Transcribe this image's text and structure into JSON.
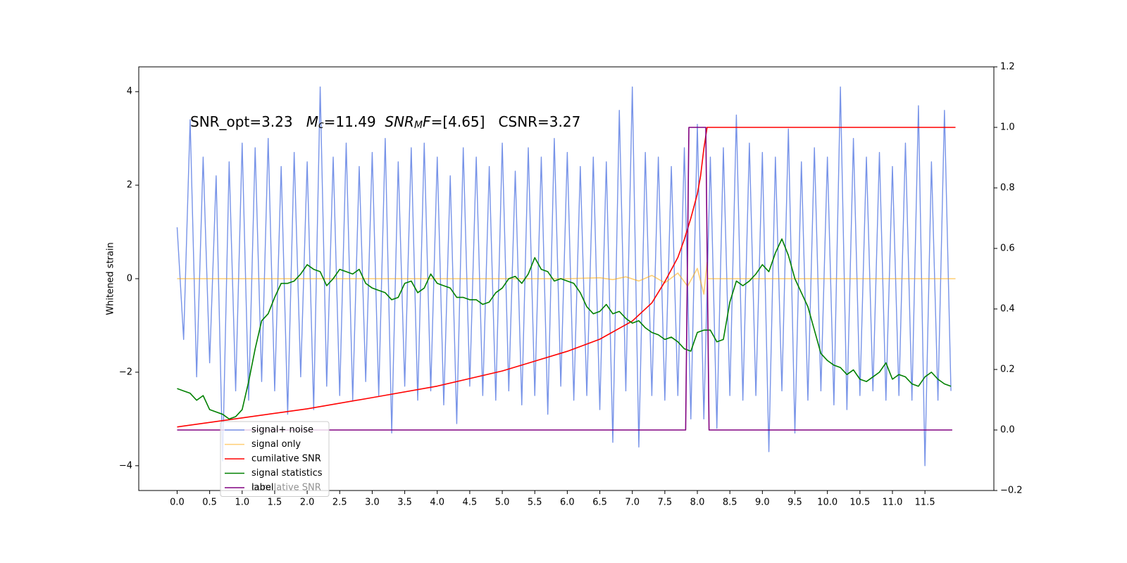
{
  "chart_data": {
    "type": "line",
    "annotation": [
      {
        "text": "SNR_opt=3.23   ",
        "style": "normal"
      },
      {
        "text": "M",
        "style": "italic"
      },
      {
        "text": "c",
        "style": "sub"
      },
      {
        "text": "=11.49  ",
        "style": "normal"
      },
      {
        "text": "SNR",
        "style": "italic"
      },
      {
        "text": "M",
        "style": "sub"
      },
      {
        "text": "F",
        "style": "italic"
      },
      {
        "text": "=[4.65]   CSNR=3.27",
        "style": "normal"
      }
    ],
    "ylabel": "Whitened strain",
    "xlim": [
      -0.59,
      12.56
    ],
    "ylim": [
      -4.53,
      4.53
    ],
    "y2lim": [
      -0.2,
      1.2
    ],
    "xticks": [
      {
        "value": 0,
        "label": "0.0"
      },
      0.5,
      {
        "value": 1,
        "label": "1.0"
      },
      1.5,
      {
        "value": 2,
        "label": "2.0"
      },
      2.5,
      {
        "value": 3,
        "label": "3.0"
      },
      3.5,
      {
        "value": 4,
        "label": "4.0"
      },
      4.5,
      {
        "value": 5,
        "label": "5.0"
      },
      5.5,
      {
        "value": 6,
        "label": "6.0"
      },
      6.5,
      {
        "value": 7,
        "label": "7.0"
      },
      7.5,
      {
        "value": 8,
        "label": "8.0"
      },
      8.5,
      {
        "value": 9,
        "label": "9.0"
      },
      9.5,
      {
        "value": 10,
        "label": "10.0"
      },
      10.5,
      {
        "value": 11,
        "label": "11.0"
      },
      11.5
    ],
    "yticks": [
      {
        "value": -4,
        "label": "−4"
      },
      {
        "value": -2,
        "label": "−2"
      },
      0,
      2,
      4
    ],
    "y2ticks": [
      {
        "value": -0.2,
        "label": "−0.2"
      },
      {
        "value": 0,
        "label": "0.0"
      },
      0.2,
      0.4,
      0.6,
      0.8,
      {
        "value": 1,
        "label": "1.0"
      },
      1.2
    ],
    "legend": {
      "loc": "lower left"
    },
    "background_legend_text": "cumilative SNR",
    "x": [
      0,
      0.1,
      0.2,
      0.3,
      0.4,
      0.5,
      0.6,
      0.7,
      0.8,
      0.9,
      1.0,
      1.1,
      1.2,
      1.3,
      1.4,
      1.5,
      1.6,
      1.7,
      1.8,
      1.9,
      2.0,
      2.1,
      2.2,
      2.3,
      2.4,
      2.5,
      2.6,
      2.7,
      2.8,
      2.9,
      3.0,
      3.1,
      3.2,
      3.3,
      3.4,
      3.5,
      3.6,
      3.7,
      3.8,
      3.9,
      4.0,
      4.1,
      4.2,
      4.3,
      4.4,
      4.5,
      4.6,
      4.7,
      4.8,
      4.9,
      5.0,
      5.1,
      5.2,
      5.3,
      5.4,
      5.5,
      5.6,
      5.7,
      5.8,
      5.9,
      6.0,
      6.1,
      6.2,
      6.3,
      6.4,
      6.5,
      6.6,
      6.7,
      6.8,
      6.9,
      7.0,
      7.1,
      7.2,
      7.3,
      7.4,
      7.5,
      7.6,
      7.7,
      7.8,
      7.9,
      8.0,
      8.1,
      8.2,
      8.3,
      8.4,
      8.5,
      8.6,
      8.7,
      8.8,
      8.9,
      9.0,
      9.1,
      9.2,
      9.3,
      9.4,
      9.5,
      9.6,
      9.7,
      9.8,
      9.9,
      10.0,
      10.1,
      10.2,
      10.3,
      10.4,
      10.5,
      10.6,
      10.7,
      10.8,
      10.9,
      11.0,
      11.1,
      11.2,
      11.3,
      11.4,
      11.5,
      11.6,
      11.7,
      11.8,
      11.9
    ],
    "series": [
      {
        "name": "signal+ noise",
        "color": "#7793e8",
        "axis": "y",
        "values": [
          1.1,
          -1.3,
          3.4,
          -2.1,
          2.6,
          -1.8,
          2.2,
          -3.9,
          2.5,
          -2.4,
          2.9,
          -2.6,
          2.8,
          -2.2,
          3.0,
          -2.4,
          2.4,
          -2.9,
          2.7,
          -2.1,
          2.5,
          -2.8,
          4.1,
          -2.3,
          2.6,
          -2.5,
          2.9,
          -2.6,
          2.4,
          -2.2,
          2.7,
          -2.5,
          3.0,
          -3.3,
          2.5,
          -2.3,
          2.8,
          -2.6,
          2.9,
          -2.4,
          2.6,
          -2.7,
          2.2,
          -3.1,
          2.8,
          -2.3,
          2.6,
          -2.5,
          2.4,
          -2.6,
          2.9,
          -2.4,
          2.3,
          -2.7,
          2.8,
          -2.5,
          2.6,
          -2.9,
          3.0,
          -2.3,
          2.7,
          -2.6,
          2.4,
          -2.5,
          2.6,
          -2.8,
          2.5,
          -3.5,
          3.6,
          -2.4,
          4.1,
          -3.6,
          2.7,
          -2.5,
          2.6,
          -2.6,
          2.4,
          -2.5,
          2.8,
          -3.0,
          3.3,
          -3.0,
          2.6,
          -3.2,
          2.8,
          -2.5,
          3.5,
          -2.6,
          2.9,
          -2.5,
          2.7,
          -3.7,
          2.6,
          -2.4,
          3.2,
          -3.3,
          2.5,
          -2.6,
          2.8,
          -2.4,
          2.6,
          -2.7,
          4.1,
          -2.8,
          3.0,
          -2.5,
          2.6,
          -2.4,
          2.7,
          -2.6,
          2.4,
          -2.5,
          2.9,
          -2.6,
          3.7,
          -4.0,
          2.5,
          -2.6,
          3.6,
          -2.4
        ]
      },
      {
        "name": "signal only",
        "color": "#ffa500",
        "axis": "y",
        "x": [
          0,
          6.0,
          6.5,
          6.7,
          6.9,
          7.1,
          7.3,
          7.5,
          7.7,
          7.85,
          8.0,
          8.1,
          8.15,
          8.16,
          11.97
        ],
        "values": [
          0,
          0,
          0.02,
          -0.02,
          0.04,
          -0.05,
          0.07,
          -0.09,
          0.12,
          -0.16,
          0.22,
          -0.33,
          0.35,
          0,
          0
        ]
      },
      {
        "name": "cumilative SNR",
        "color": "#ff0000",
        "axis": "y2",
        "x": [
          0,
          1,
          2,
          3,
          4,
          5,
          6,
          6.5,
          7,
          7.3,
          7.5,
          7.7,
          7.8,
          7.9,
          8.0,
          8.05,
          8.1,
          8.15,
          11.97
        ],
        "values": [
          0.01,
          0.04,
          0.07,
          0.107,
          0.145,
          0.195,
          0.26,
          0.3,
          0.36,
          0.42,
          0.49,
          0.57,
          0.63,
          0.7,
          0.78,
          0.84,
          0.93,
          1.0,
          1.0
        ]
      },
      {
        "name": "signal statistics",
        "color": "#008000",
        "axis": "y",
        "values": [
          -2.35,
          -2.4,
          -2.45,
          -2.6,
          -2.5,
          -2.8,
          -2.85,
          -2.9,
          -3.0,
          -2.95,
          -2.8,
          -2.2,
          -1.5,
          -0.9,
          -0.75,
          -0.4,
          -0.1,
          -0.1,
          -0.05,
          0.1,
          0.3,
          0.2,
          0.15,
          -0.15,
          0.0,
          0.2,
          0.15,
          0.1,
          0.2,
          -0.1,
          -0.2,
          -0.25,
          -0.3,
          -0.45,
          -0.4,
          -0.1,
          -0.05,
          -0.3,
          -0.2,
          0.1,
          -0.1,
          -0.15,
          -0.2,
          -0.4,
          -0.4,
          -0.45,
          -0.45,
          -0.55,
          -0.5,
          -0.3,
          -0.2,
          0.0,
          0.05,
          -0.1,
          0.1,
          0.45,
          0.2,
          0.15,
          -0.05,
          0.0,
          -0.05,
          -0.1,
          -0.3,
          -0.6,
          -0.75,
          -0.7,
          -0.55,
          -0.75,
          -0.7,
          -0.85,
          -0.95,
          -0.9,
          -1.05,
          -1.15,
          -1.2,
          -1.3,
          -1.25,
          -1.35,
          -1.5,
          -1.55,
          -1.15,
          -1.1,
          -1.1,
          -1.35,
          -1.3,
          -0.5,
          -0.05,
          -0.15,
          -0.05,
          0.1,
          0.3,
          0.15,
          0.55,
          0.85,
          0.5,
          0.0,
          -0.3,
          -0.6,
          -1.1,
          -1.6,
          -1.75,
          -1.85,
          -1.9,
          -2.05,
          -1.95,
          -2.15,
          -2.2,
          -2.1,
          -2.0,
          -1.8,
          -2.15,
          -2.05,
          -2.1,
          -2.25,
          -2.3,
          -2.1,
          -2.0,
          -2.15,
          -2.25,
          -2.3
        ]
      },
      {
        "name": "label",
        "color": "#800080",
        "axis": "y2",
        "x": [
          0,
          7.82,
          7.87,
          8.13,
          8.18,
          11.92
        ],
        "values": [
          0,
          0,
          1,
          1,
          0,
          0
        ]
      }
    ]
  }
}
